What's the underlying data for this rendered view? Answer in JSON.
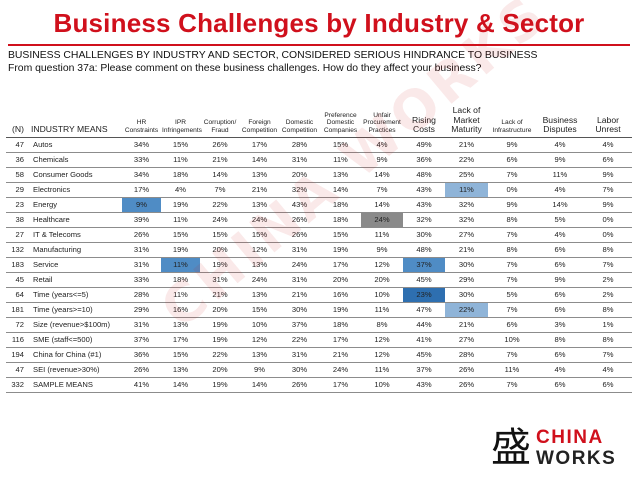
{
  "page": {
    "title": "Business Challenges by Industry & Sector",
    "subtitle_line1": "BUSINESS CHALLENGES BY INDUSTRY AND SECTOR, CONSIDERED SERIOUS HINDRANCE TO BUSINESS",
    "subtitle_line2": "From question 37a: Please comment on these business challenges. How do they affect your business?",
    "watermark": "CHINA WORKS"
  },
  "colors": {
    "title": "#d0101c",
    "highlight_dark": "#2e6fb0",
    "highlight_medium": "#4f8cc5",
    "highlight_light": "#8fb4d8",
    "highlight_grey": "#8a8a8a"
  },
  "table": {
    "headers": [
      "(N)",
      "INDUSTRY MEANS",
      "HR Constraints",
      "IPR Infringements",
      "Corruption/ Fraud",
      "Foreign Competition",
      "Domestic Competition",
      "Preference Domestic Companies",
      "Unfair Procurement Practices",
      "Rising Costs",
      "Lack of Market Maturity",
      "Lack of Infrastructure",
      "Business Disputes",
      "Labor Unrest"
    ],
    "rows": [
      {
        "n": "47",
        "name": "Autos",
        "vals": [
          "34%",
          "15%",
          "26%",
          "17%",
          "28%",
          "15%",
          "4%",
          "49%",
          "21%",
          "9%",
          "4%",
          "4%"
        ]
      },
      {
        "n": "36",
        "name": "Chemicals",
        "vals": [
          "33%",
          "11%",
          "21%",
          "14%",
          "31%",
          "11%",
          "9%",
          "36%",
          "22%",
          "6%",
          "9%",
          "6%"
        ]
      },
      {
        "n": "58",
        "name": "Consumer Goods",
        "vals": [
          "34%",
          "18%",
          "14%",
          "13%",
          "20%",
          "13%",
          "14%",
          "48%",
          "25%",
          "7%",
          "11%",
          "9%"
        ]
      },
      {
        "n": "29",
        "name": "Electronics",
        "vals": [
          "17%",
          "4%",
          "7%",
          "21%",
          "32%",
          "14%",
          "7%",
          "43%",
          "11%",
          "0%",
          "4%",
          "7%"
        ]
      },
      {
        "n": "23",
        "name": "Energy",
        "vals": [
          "9%",
          "19%",
          "22%",
          "13%",
          "43%",
          "18%",
          "14%",
          "43%",
          "32%",
          "9%",
          "14%",
          "9%"
        ]
      },
      {
        "n": "38",
        "name": "Healthcare",
        "vals": [
          "39%",
          "11%",
          "24%",
          "24%",
          "26%",
          "18%",
          "24%",
          "32%",
          "32%",
          "8%",
          "5%",
          "0%"
        ]
      },
      {
        "n": "27",
        "name": "IT & Telecoms",
        "vals": [
          "26%",
          "15%",
          "15%",
          "15%",
          "26%",
          "15%",
          "11%",
          "30%",
          "27%",
          "7%",
          "4%",
          "0%"
        ]
      },
      {
        "n": "132",
        "name": "Manufacturing",
        "vals": [
          "31%",
          "19%",
          "20%",
          "12%",
          "31%",
          "19%",
          "9%",
          "48%",
          "21%",
          "8%",
          "6%",
          "8%"
        ]
      },
      {
        "n": "183",
        "name": "Service",
        "vals": [
          "31%",
          "11%",
          "19%",
          "13%",
          "24%",
          "17%",
          "12%",
          "37%",
          "30%",
          "7%",
          "6%",
          "7%"
        ]
      },
      {
        "n": "45",
        "name": "Retail",
        "vals": [
          "33%",
          "18%",
          "31%",
          "24%",
          "31%",
          "20%",
          "20%",
          "45%",
          "29%",
          "7%",
          "9%",
          "2%"
        ]
      },
      {
        "n": "64",
        "name": "Time (years<=5)",
        "vals": [
          "28%",
          "11%",
          "21%",
          "13%",
          "21%",
          "16%",
          "10%",
          "23%",
          "30%",
          "5%",
          "6%",
          "2%"
        ]
      },
      {
        "n": "181",
        "name": "Time (years>=10)",
        "vals": [
          "29%",
          "16%",
          "20%",
          "15%",
          "30%",
          "19%",
          "11%",
          "47%",
          "22%",
          "7%",
          "6%",
          "8%"
        ]
      },
      {
        "n": "72",
        "name": "Size (revenue>$100m)",
        "vals": [
          "31%",
          "13%",
          "19%",
          "10%",
          "37%",
          "18%",
          "8%",
          "44%",
          "21%",
          "6%",
          "3%",
          "1%"
        ]
      },
      {
        "n": "116",
        "name": "SME (staff<=500)",
        "vals": [
          "37%",
          "17%",
          "19%",
          "12%",
          "22%",
          "17%",
          "12%",
          "41%",
          "27%",
          "10%",
          "8%",
          "8%"
        ]
      },
      {
        "n": "194",
        "name": "China for China (#1)",
        "vals": [
          "36%",
          "15%",
          "22%",
          "13%",
          "31%",
          "21%",
          "12%",
          "45%",
          "28%",
          "7%",
          "6%",
          "7%"
        ]
      },
      {
        "n": "47",
        "name": "SEI (revenue>30%)",
        "vals": [
          "26%",
          "13%",
          "20%",
          "9%",
          "30%",
          "24%",
          "11%",
          "37%",
          "26%",
          "11%",
          "4%",
          "4%"
        ]
      },
      {
        "n": "332",
        "name": "SAMPLE MEANS",
        "vals": [
          "41%",
          "14%",
          "19%",
          "14%",
          "26%",
          "17%",
          "10%",
          "43%",
          "26%",
          "7%",
          "6%",
          "6%"
        ]
      }
    ]
  },
  "logo": {
    "mark": "盛",
    "line1": "CHINA",
    "line2": "WORKS"
  }
}
